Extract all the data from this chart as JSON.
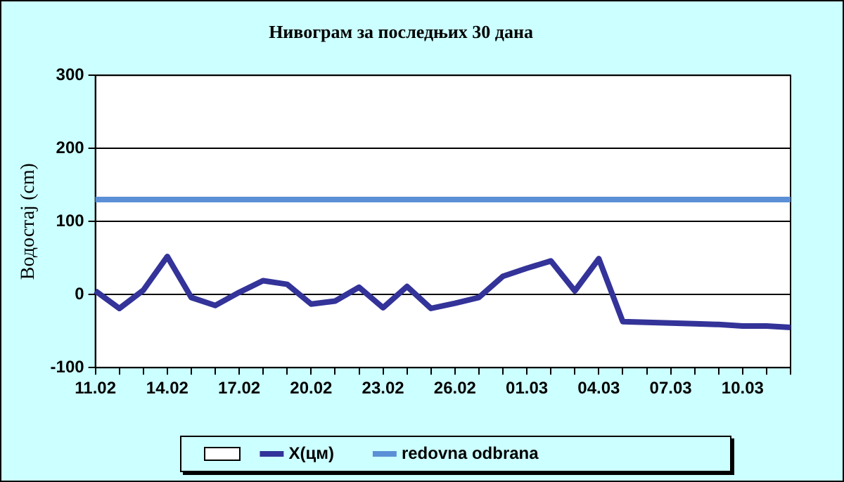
{
  "chart_data": {
    "type": "line",
    "title": "Нивограм за последњих 30 дана",
    "ylabel": "Водостај (cm)",
    "categories": [
      "11.02",
      null,
      null,
      "14.02",
      null,
      null,
      "17.02",
      null,
      null,
      "20.02",
      null,
      null,
      "23.02",
      null,
      null,
      "26.02",
      null,
      null,
      "01.03",
      null,
      null,
      "04.03",
      null,
      null,
      "07.03",
      null,
      null,
      "10.03",
      null,
      null
    ],
    "series": [
      {
        "name": "X(цм)",
        "color": "#333399",
        "values": [
          5,
          -19,
          6,
          52,
          -4,
          -15,
          3,
          19,
          14,
          -13,
          -9,
          10,
          -18,
          11,
          -19,
          -12,
          -4,
          25,
          36,
          46,
          5,
          49,
          -37,
          -38,
          -39,
          -40,
          -41,
          -43,
          -43,
          -45
        ]
      },
      {
        "name": "redovna odbrana",
        "color": "#5b8fd6",
        "values": [
          130,
          130,
          130,
          130,
          130,
          130,
          130,
          130,
          130,
          130,
          130,
          130,
          130,
          130,
          130,
          130,
          130,
          130,
          130,
          130,
          130,
          130,
          130,
          130,
          130,
          130,
          130,
          130,
          130,
          130
        ]
      }
    ],
    "ylim": [
      -100,
      300
    ],
    "yticks": [
      -100,
      0,
      100,
      200,
      300
    ],
    "grid": "y",
    "legend": "bottom",
    "marker": "none",
    "line_style": "solid"
  }
}
